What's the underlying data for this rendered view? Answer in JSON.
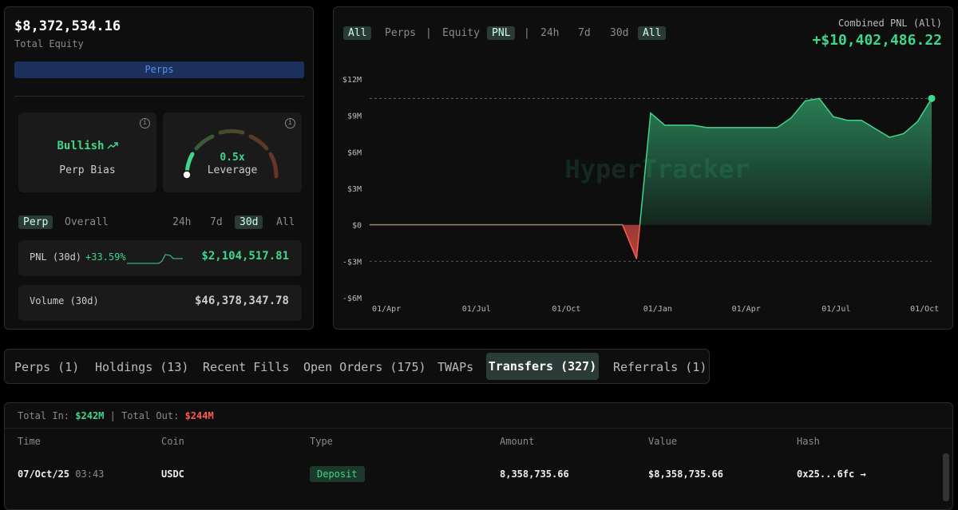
{
  "summary": {
    "equity": "$8,372,534.16",
    "equity_label": "Total Equity",
    "badge": "Perps"
  },
  "bias": {
    "value": "Bullish",
    "label": "Perp Bias"
  },
  "leverage": {
    "value": "0.5x",
    "label": "Leverage"
  },
  "stat_tabs": [
    "Perp",
    "Overall"
  ],
  "stat_periods": [
    "24h",
    "7d",
    "30d",
    "All"
  ],
  "pnl": {
    "label": "PNL (30d)",
    "pct": "+33.59%",
    "value": "$2,104,517.81"
  },
  "volume": {
    "label": "Volume (30d)",
    "value": "$46,378,347.78"
  },
  "chart_controls": {
    "scope": [
      "All",
      "Perps"
    ],
    "metric": [
      "Equity",
      "PNL"
    ],
    "periods": [
      "24h",
      "7d",
      "30d",
      "All"
    ]
  },
  "combined": {
    "label": "Combined PNL (All)",
    "value": "+$10,402,486.22"
  },
  "chart": {
    "type": "line",
    "watermark": "HyperTracker",
    "values": [
      0,
      0,
      0,
      0,
      0,
      0,
      0,
      0,
      0,
      0,
      0,
      0,
      0,
      0,
      0,
      0,
      0,
      0,
      0,
      -2.8,
      9.2,
      8.2,
      8.2,
      8.2,
      8.0,
      8.0,
      8.0,
      8.0,
      8.0,
      8.0,
      8.8,
      10.2,
      10.4,
      8.9,
      8.6,
      8.6,
      7.9,
      7.2,
      7.5,
      8.5,
      10.4
    ],
    "xlim": [
      0,
      40
    ],
    "xticks": [
      {
        "value": 1.2,
        "label": "01/Apr"
      },
      {
        "value": 7.6,
        "label": "01/Jul"
      },
      {
        "value": 14,
        "label": "01/Oct"
      },
      {
        "value": 20.5,
        "label": "01/Jan"
      },
      {
        "value": 26.8,
        "label": "01/Apr"
      },
      {
        "value": 33.2,
        "label": "01/Jul"
      },
      {
        "value": 39.5,
        "label": "01/Oct"
      }
    ],
    "ylim": [
      -6,
      12
    ],
    "yticks": [
      {
        "value": 12,
        "label": "$12M"
      },
      {
        "value": 9,
        "label": "$9M"
      },
      {
        "value": 6,
        "label": "$6M"
      },
      {
        "value": 3,
        "label": "$3M"
      },
      {
        "value": 0,
        "label": "$0"
      },
      {
        "value": -3,
        "label": "-$3M"
      },
      {
        "value": -6,
        "label": "-$6M"
      }
    ],
    "color": "#3fd68c",
    "negative_color": "#ff5a4f"
  },
  "tabs": [
    "Perps (1)",
    "Holdings (13)",
    "Recent Fills",
    "Open Orders (175)",
    "TWAPs",
    "Transfers (327)",
    "Referrals (1)"
  ],
  "transfers": {
    "in_label": "Total In:",
    "in": "$242M",
    "out_label": "Total Out:",
    "out": "$244M",
    "columns": [
      "Time",
      "Coin",
      "Type",
      "Amount",
      "Value",
      "Hash"
    ],
    "rows": [
      {
        "date": "07/Oct/25",
        "time": "03:43",
        "coin": "USDC",
        "type": "Deposit",
        "amount": "8,358,735.66",
        "value": "$8,358,735.66",
        "hash": "0x25...6fc →"
      }
    ]
  }
}
